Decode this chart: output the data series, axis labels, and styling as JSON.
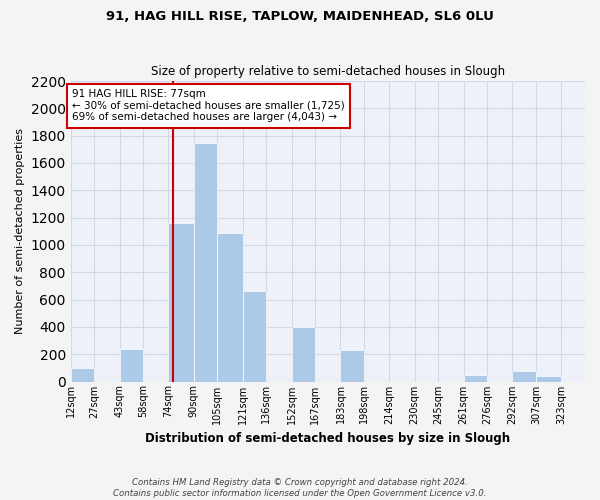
{
  "title1": "91, HAG HILL RISE, TAPLOW, MAIDENHEAD, SL6 0LU",
  "title2": "Size of property relative to semi-detached houses in Slough",
  "xlabel": "Distribution of semi-detached houses by size in Slough",
  "ylabel": "Number of semi-detached properties",
  "bin_labels": [
    "12sqm",
    "27sqm",
    "43sqm",
    "58sqm",
    "74sqm",
    "90sqm",
    "105sqm",
    "121sqm",
    "136sqm",
    "152sqm",
    "167sqm",
    "183sqm",
    "198sqm",
    "214sqm",
    "230sqm",
    "245sqm",
    "261sqm",
    "276sqm",
    "292sqm",
    "307sqm",
    "323sqm"
  ],
  "bar_heights": [
    100,
    0,
    240,
    0,
    1160,
    1750,
    1090,
    660,
    0,
    400,
    0,
    230,
    0,
    0,
    0,
    0,
    50,
    0,
    80,
    40,
    0
  ],
  "bar_color": "#adc9e8",
  "grid_color": "#d0d8e8",
  "background_color": "#eef2f8",
  "fig_background": "#f4f4f4",
  "property_size_sqm": 77,
  "property_label": "91 HAG HILL RISE: 77sqm",
  "annotation_text1": "← 30% of semi-detached houses are smaller (1,725)",
  "annotation_text2": "69% of semi-detached houses are larger (4,043) →",
  "annotation_box_color": "#ffffff",
  "annotation_border_color": "#cc0000",
  "vline_color": "#cc0000",
  "footer_line1": "Contains HM Land Registry data © Crown copyright and database right 2024.",
  "footer_line2": "Contains public sector information licensed under the Open Government Licence v3.0.",
  "ylim": [
    0,
    2200
  ],
  "yticks": [
    0,
    200,
    400,
    600,
    800,
    1000,
    1200,
    1400,
    1600,
    1800,
    2000,
    2200
  ],
  "bin_edges": [
    12,
    27,
    43,
    58,
    74,
    90,
    105,
    121,
    136,
    152,
    167,
    183,
    198,
    214,
    230,
    245,
    261,
    276,
    292,
    307,
    323,
    338
  ]
}
